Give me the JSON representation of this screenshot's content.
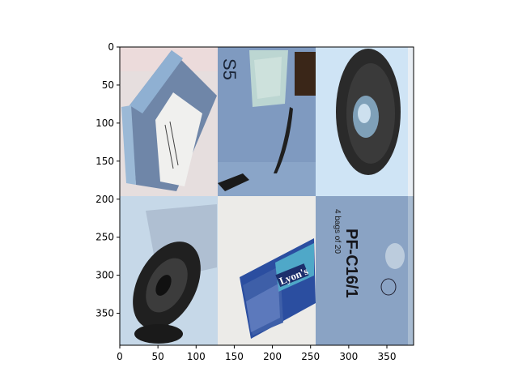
{
  "image_grid": {
    "x_ticks": [
      "0",
      "50",
      "100",
      "150",
      "200",
      "250",
      "300",
      "350"
    ],
    "y_ticks": [
      "0",
      "50",
      "100",
      "150",
      "200",
      "250",
      "300",
      "350"
    ],
    "x_range": [
      0,
      385
    ],
    "y_range": [
      0,
      392
    ],
    "tiles": [
      {
        "subject": "blue-cardboard-box",
        "texts": []
      },
      {
        "subject": "plastic-bag-on-blue-surface",
        "texts": [
          "S5"
        ]
      },
      {
        "subject": "round-lens-object",
        "texts": []
      },
      {
        "subject": "black-rubber-object",
        "texts": []
      },
      {
        "subject": "lyons-packet",
        "texts": [
          "Lyon's"
        ]
      },
      {
        "subject": "blue-packaging-label",
        "texts": [
          "4 bags of 20",
          "PF-C16/1"
        ]
      }
    ]
  }
}
